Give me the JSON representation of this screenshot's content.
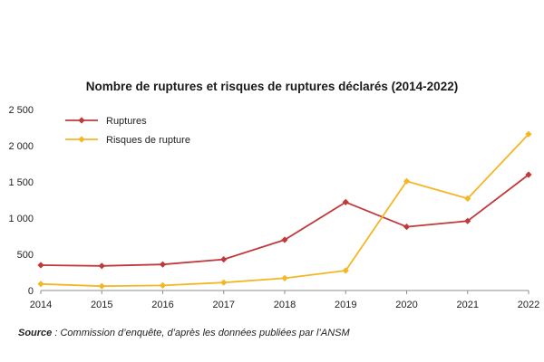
{
  "chart_data": {
    "type": "line",
    "title": "Nombre de ruptures et risques de ruptures déclarés (2014-2022)",
    "xlabel": "",
    "ylabel": "",
    "x": [
      "2014",
      "2015",
      "2016",
      "2017",
      "2018",
      "2019",
      "2020",
      "2021",
      "2022"
    ],
    "ylim": [
      0,
      2500
    ],
    "yticks": [
      0,
      500,
      1000,
      1500,
      2000,
      2500
    ],
    "ytick_labels": [
      "0",
      "500",
      "1 000",
      "1 500",
      "2 000",
      "2 500"
    ],
    "grid": false,
    "legend_position": "top-left",
    "series": [
      {
        "name": "Ruptures",
        "color": "#c0393b",
        "marker": "diamond",
        "values": [
          350,
          340,
          360,
          430,
          700,
          1220,
          880,
          960,
          1600
        ]
      },
      {
        "name": "Risques de rupture",
        "color": "#f5b626",
        "marker": "diamond",
        "values": [
          90,
          60,
          70,
          110,
          170,
          275,
          1510,
          1270,
          2160
        ]
      }
    ]
  },
  "source": {
    "label": "Source",
    "text": " : Commission d’enquête, d’après les données publiées par l’ANSM"
  }
}
